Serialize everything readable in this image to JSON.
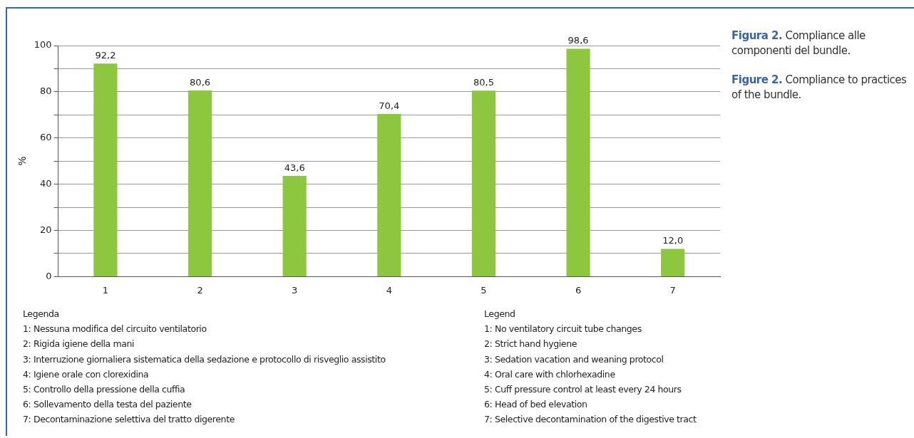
{
  "chart_data": {
    "type": "bar",
    "ylabel": "%",
    "categories": [
      "1",
      "2",
      "3",
      "4",
      "5",
      "6",
      "7"
    ],
    "values": [
      92.2,
      80.6,
      43.6,
      70.4,
      80.5,
      98.6,
      12.0
    ],
    "value_labels": [
      "92,2",
      "80,6",
      "43,6",
      "70,4",
      "80,5",
      "98,6",
      "12,0"
    ],
    "color": "#8dc63f",
    "ylim": [
      0,
      100
    ],
    "yticks": [
      0,
      {
        "value": 10,
        "label": null
      },
      20,
      {
        "value": 30,
        "label": null
      },
      40,
      {
        "value": 50,
        "label": null
      },
      60,
      {
        "value": 70,
        "label": null
      },
      80,
      {
        "value": 90,
        "label": null
      },
      100
    ],
    "grid": "y",
    "legend": false,
    "annotations": [
      "Figura 2. Compliance alle componenti del bundle.",
      "Figure 2. Compliance to practices of the bundle.",
      "Legenda",
      "1: Nessuna modifica del circuito ventilatorio",
      "2: Rigida igiene della mani",
      "3: Interruzione giornaliera sistematica della sedazione e protocollo di risveglio assistito",
      "4: Igiene orale con clorexidina",
      "5: Controllo della pressione della cuffia",
      "6: Sollevamento della testa del paziente",
      "7: Decontaminazione selettiva del tratto digerente",
      "Legend",
      "1: No ventilatory circuit tube changes",
      "2: Strict hand hygiene",
      "3: Sedation vacation and weaning protocol",
      "4: Oral care with chlorhexadine",
      "5: Cuff pressure control at least every 24 hours",
      "6: Head of bed elevation",
      "7: Selective decontamination of the digestive tract"
    ]
  }
}
